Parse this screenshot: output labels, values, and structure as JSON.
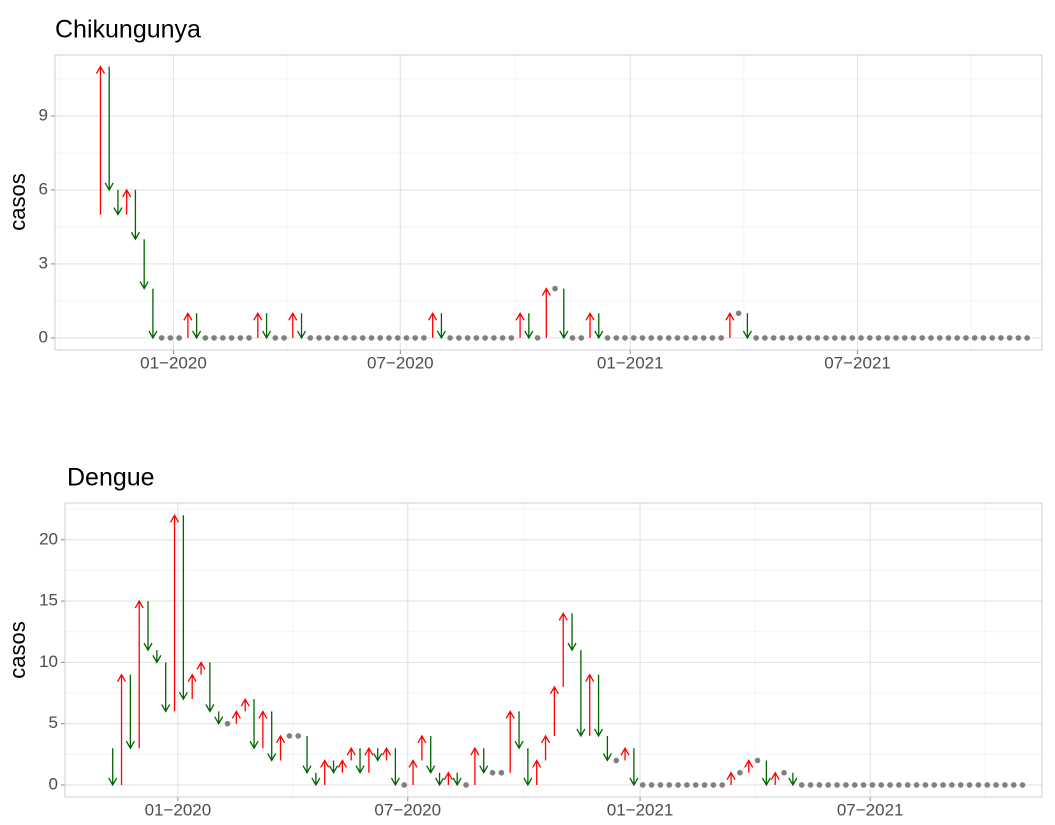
{
  "chart_data": [
    {
      "type": "arrow",
      "title": "Chikungunya",
      "y_label": "casos",
      "x": [
        0,
        1,
        2,
        3,
        4,
        5,
        6,
        7,
        8,
        9,
        10,
        11,
        12,
        13,
        14,
        15,
        16,
        17,
        18,
        19,
        20,
        21,
        22,
        23,
        24,
        25,
        26,
        27,
        28,
        29,
        30,
        31,
        32,
        33,
        34,
        35,
        36,
        37,
        38,
        39,
        40,
        41,
        42,
        43,
        44,
        45,
        46,
        47,
        48,
        49,
        50,
        51,
        52,
        53,
        54,
        55,
        56,
        57,
        58,
        59,
        60,
        61,
        62,
        63,
        64,
        65,
        66,
        67,
        68,
        69,
        70,
        71,
        72,
        73,
        74,
        75,
        76,
        77,
        78,
        79,
        80,
        81,
        82,
        83,
        84,
        85,
        86,
        87,
        88,
        89,
        90,
        91,
        92,
        93,
        94,
        95,
        96,
        97,
        98,
        99,
        100,
        101,
        102,
        103,
        104,
        105,
        106,
        107
      ],
      "values": [
        5,
        11,
        6,
        5,
        6,
        4,
        2,
        0,
        0,
        0,
        0,
        1,
        0,
        0,
        0,
        0,
        0,
        0,
        0,
        1,
        0,
        0,
        0,
        1,
        0,
        0,
        0,
        0,
        0,
        0,
        0,
        0,
        0,
        0,
        0,
        0,
        0,
        0,
        0,
        1,
        0,
        0,
        0,
        0,
        0,
        0,
        0,
        0,
        0,
        1,
        0,
        0,
        2,
        2,
        0,
        0,
        0,
        1,
        0,
        0,
        0,
        0,
        0,
        0,
        0,
        0,
        0,
        0,
        0,
        0,
        0,
        0,
        0,
        1,
        1,
        0,
        0,
        0,
        0,
        0,
        0,
        0,
        0,
        0,
        0,
        0,
        0,
        0,
        0,
        0,
        0,
        0,
        0,
        0,
        0,
        0,
        0,
        0,
        0,
        0,
        0,
        0,
        0,
        0,
        0,
        0,
        0,
        0
      ],
      "xlim": [
        -4.2,
        108.7
      ],
      "xticks": [
        {
          "value": 9.35,
          "label": "01−2020"
        },
        {
          "value": 35.3,
          "label": "07−2020"
        },
        {
          "value": 61.6,
          "label": "01−2021"
        },
        {
          "value": 87.6,
          "label": "07−2021"
        }
      ],
      "ylim": [
        -0.49,
        11.47
      ],
      "yticks": [
        0,
        3,
        6,
        9
      ],
      "grid": true,
      "colors": {
        "up": "#ff0000",
        "down": "#006400",
        "unchanged": "#808080"
      }
    },
    {
      "type": "arrow",
      "title": "Dengue",
      "y_label": "casos",
      "x": [
        0,
        1,
        2,
        3,
        4,
        5,
        6,
        7,
        8,
        9,
        10,
        11,
        12,
        13,
        14,
        15,
        16,
        17,
        18,
        19,
        20,
        21,
        22,
        23,
        24,
        25,
        26,
        27,
        28,
        29,
        30,
        31,
        32,
        33,
        34,
        35,
        36,
        37,
        38,
        39,
        40,
        41,
        42,
        43,
        44,
        45,
        46,
        47,
        48,
        49,
        50,
        51,
        52,
        53,
        54,
        55,
        56,
        57,
        58,
        59,
        60,
        61,
        62,
        63,
        64,
        65,
        66,
        67,
        68,
        69,
        70,
        71,
        72,
        73,
        74,
        75,
        76,
        77,
        78,
        79,
        80,
        81,
        82,
        83,
        84,
        85,
        86,
        87,
        88,
        89,
        90,
        91,
        92,
        93,
        94,
        95,
        96,
        97,
        98,
        99,
        100,
        101,
        102,
        103,
        104
      ],
      "values": [
        3,
        0,
        9,
        3,
        15,
        11,
        10,
        6,
        22,
        7,
        9,
        10,
        6,
        5,
        5,
        6,
        7,
        3,
        6,
        2,
        4,
        4,
        4,
        1,
        0,
        2,
        1,
        2,
        3,
        1,
        3,
        2,
        3,
        0,
        0,
        2,
        4,
        1,
        0,
        1,
        0,
        0,
        3,
        1,
        1,
        1,
        6,
        3,
        0,
        2,
        4,
        8,
        14,
        11,
        4,
        9,
        4,
        2,
        2,
        3,
        0,
        0,
        0,
        0,
        0,
        0,
        0,
        0,
        0,
        0,
        0,
        1,
        1,
        2,
        2,
        0,
        1,
        1,
        0,
        0,
        0,
        0,
        0,
        0,
        0,
        0,
        0,
        0,
        0,
        0,
        0,
        0,
        0,
        0,
        0,
        0,
        0,
        0,
        0,
        0,
        0,
        0,
        0,
        0,
        0
      ],
      "xlim": [
        -4.4,
        106.2
      ],
      "xticks": [
        {
          "value": 8.38,
          "label": "01−2020"
        },
        {
          "value": 34.4,
          "label": "07−2020"
        },
        {
          "value": 60.7,
          "label": "01−2021"
        },
        {
          "value": 86.75,
          "label": "07−2021"
        }
      ],
      "ylim": [
        -0.98,
        23.0
      ],
      "yticks": [
        0,
        5,
        10,
        15,
        20
      ],
      "grid": true,
      "colors": {
        "up": "#ff0000",
        "down": "#006400",
        "unchanged": "#808080"
      }
    }
  ]
}
